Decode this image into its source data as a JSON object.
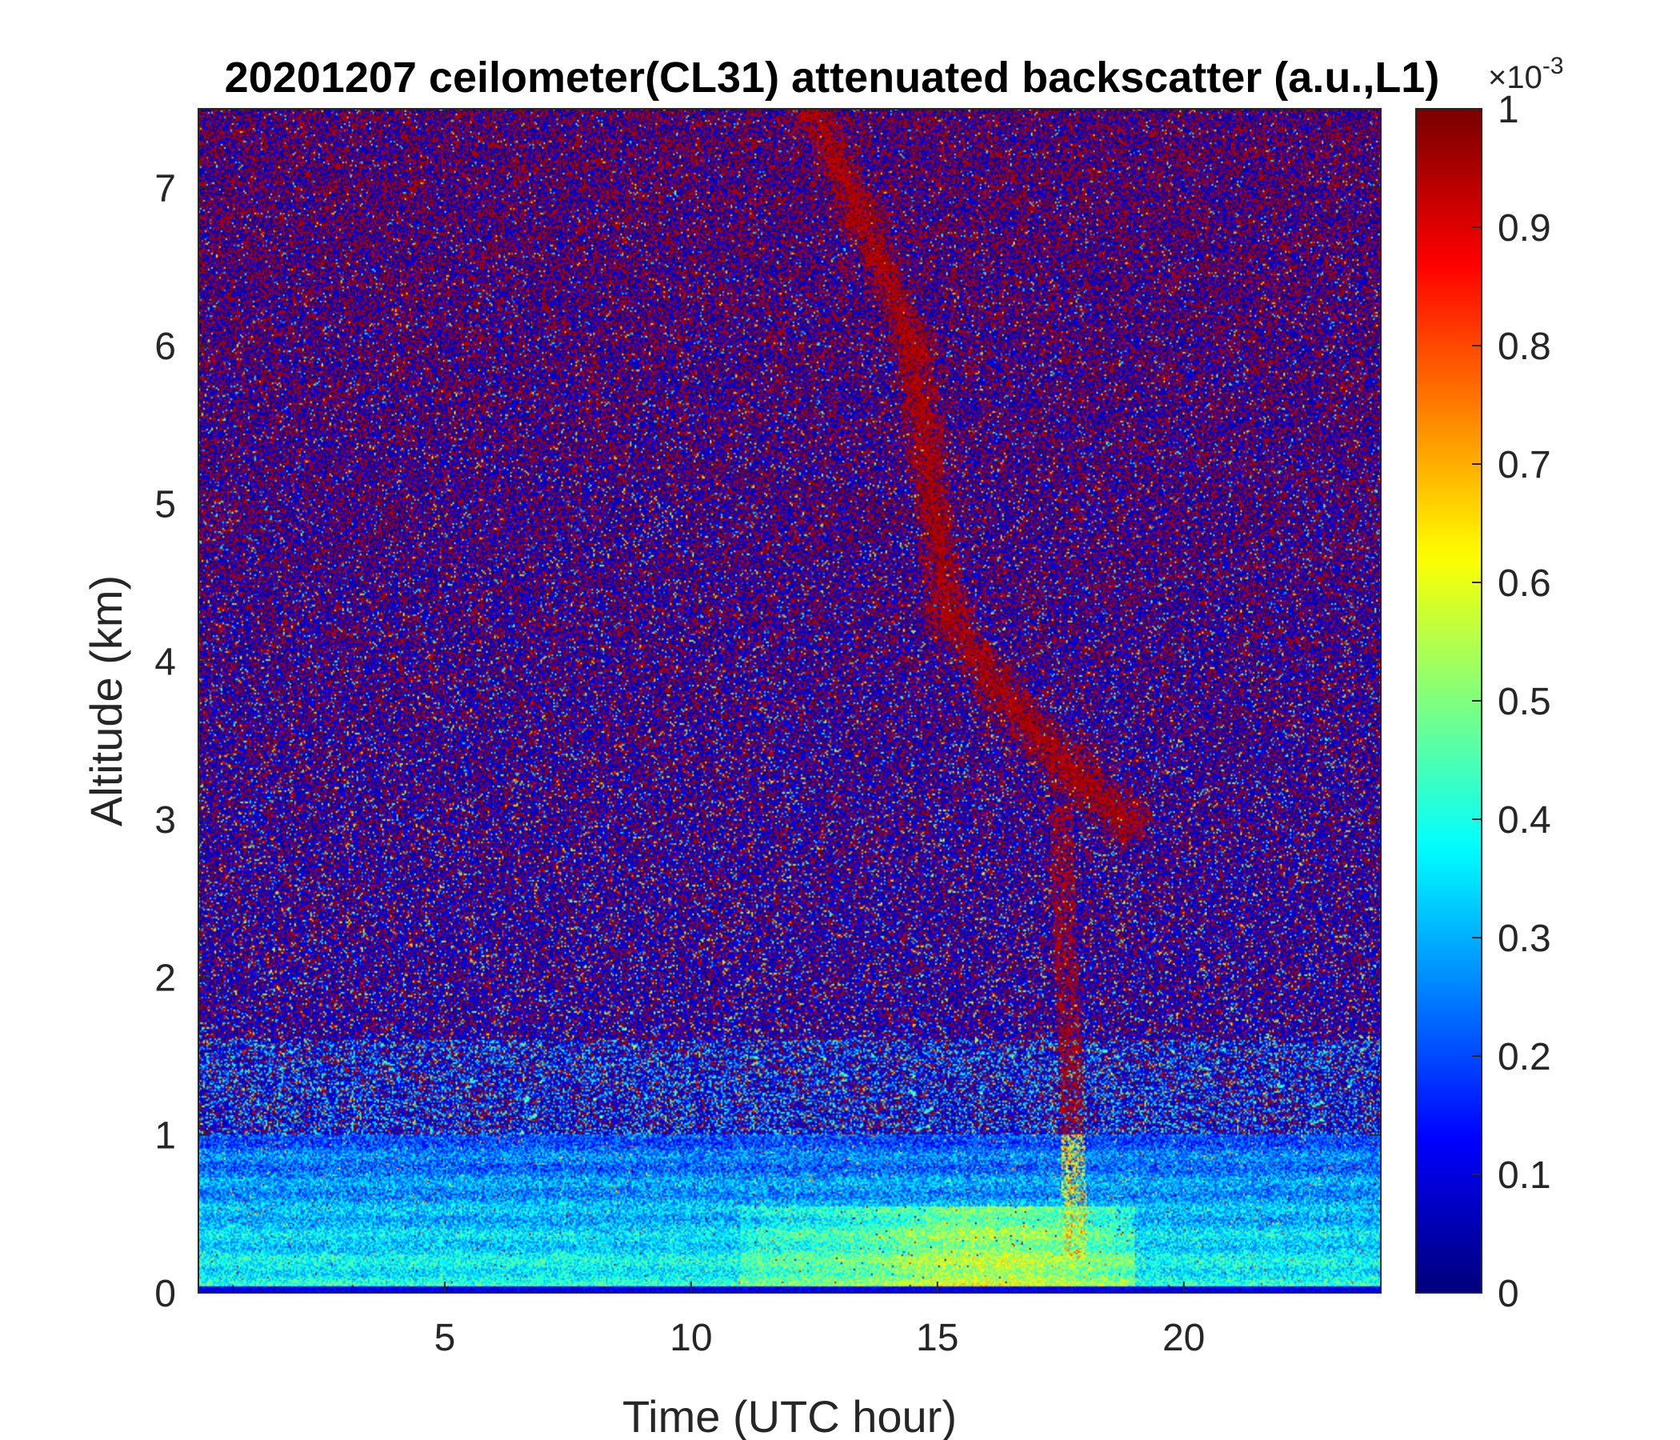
{
  "chart_data": {
    "type": "heatmap",
    "title": "20201207 ceilometer(CL31) attenuated backscatter (a.u.,L1)",
    "xlabel": "Time (UTC hour)",
    "ylabel": "Altitude (km)",
    "xlim": [
      0,
      24
    ],
    "ylim": [
      0,
      7.5
    ],
    "xticks": [
      5,
      10,
      15,
      20
    ],
    "yticks": [
      0,
      1,
      2,
      3,
      4,
      5,
      6,
      7
    ],
    "colorbar": {
      "colormap": "jet",
      "range": [
        0,
        1
      ],
      "ticks": [
        0,
        0.1,
        0.2,
        0.3,
        0.4,
        0.5,
        0.6,
        0.7,
        0.8,
        0.9,
        1
      ],
      "tick_labels": [
        "0",
        "0.1",
        "0.2",
        "0.3",
        "0.4",
        "0.5",
        "0.6",
        "0.7",
        "0.8",
        "0.9",
        "1"
      ],
      "exponent_base": "×10",
      "exponent_power": "-3"
    },
    "features": [
      {
        "name": "aerosol boundary layer",
        "time_range": [
          0,
          24
        ],
        "altitude_range": [
          0,
          1.0
        ],
        "level": 0.3
      },
      {
        "name": "enhanced near-surface layer",
        "time_range": [
          11,
          19
        ],
        "altitude_range": [
          0,
          0.5
        ],
        "level": 0.4
      },
      {
        "name": "descending cloud/precipitation band",
        "path": [
          [
            12.5,
            7.5
          ],
          [
            13.5,
            6.8
          ],
          [
            14.5,
            6.0
          ],
          [
            15.2,
            4.3
          ],
          [
            16.3,
            3.8
          ],
          [
            17.7,
            3.3
          ],
          [
            18.8,
            3.0
          ]
        ],
        "level": 1.0
      },
      {
        "name": "fall streak",
        "path": [
          [
            17.5,
            3.0
          ],
          [
            17.7,
            1.5
          ],
          [
            17.8,
            0.3
          ]
        ],
        "level": 0.6
      }
    ]
  }
}
